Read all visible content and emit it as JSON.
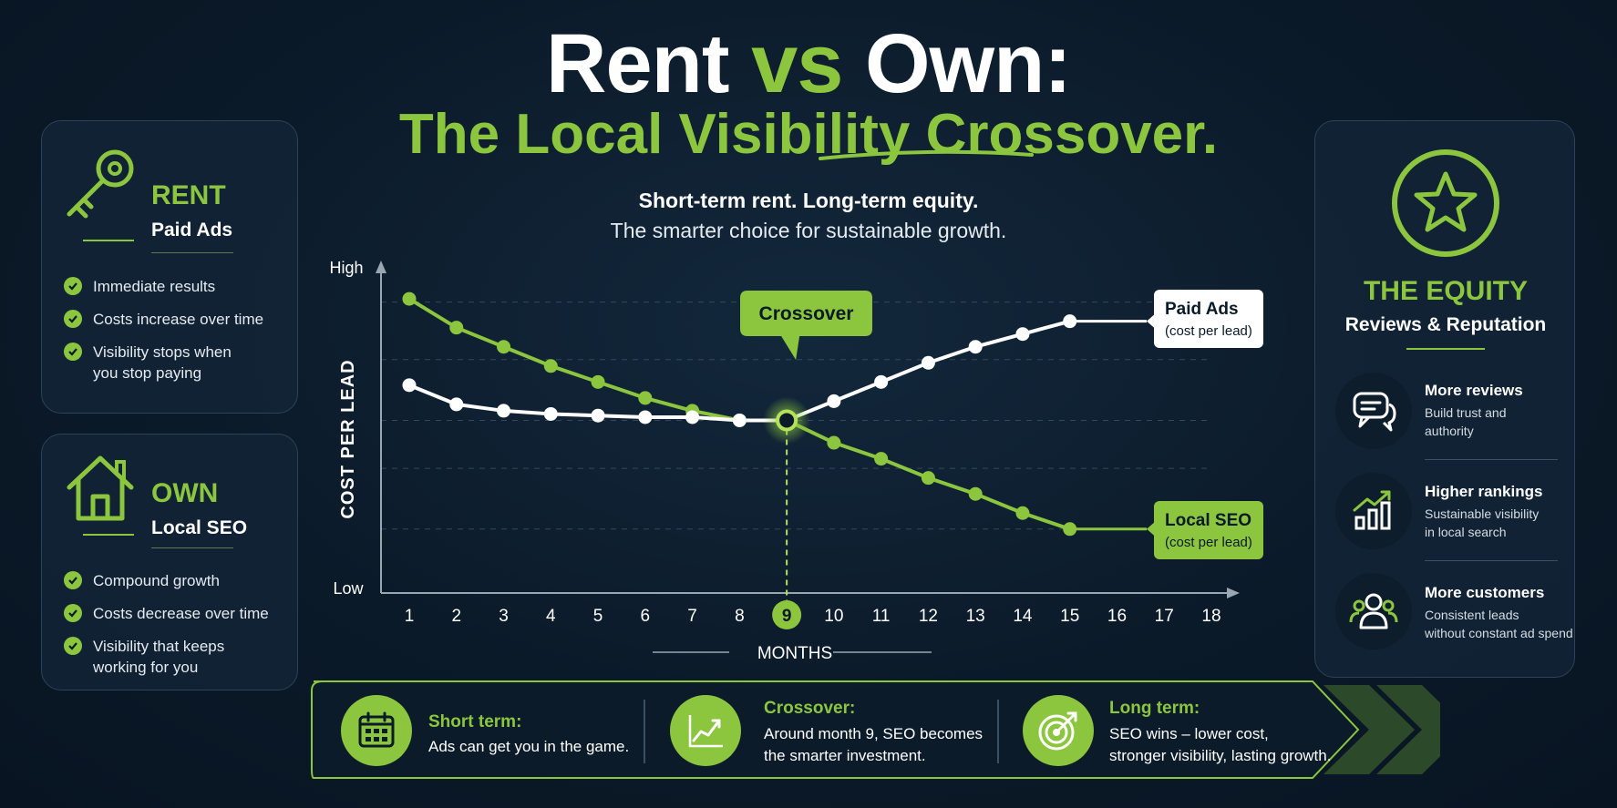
{
  "title": {
    "part1": "Rent",
    "part2": "vs",
    "part3": "Own:",
    "line2": "The Local Visibility Crossover."
  },
  "subtitle": {
    "line1": "Short-term rent. Long-term equity.",
    "line2": "The smarter choice for sustainable growth."
  },
  "rent_panel": {
    "heading": "RENT",
    "sub": "Paid Ads",
    "icon": "key-icon",
    "items": [
      "Immediate results",
      "Costs increase over time",
      "Visibility stops when",
      "you stop paying"
    ]
  },
  "own_panel": {
    "heading": "OWN",
    "sub": "Local SEO",
    "icon": "house-icon",
    "items": [
      "Compound growth",
      "Costs decrease over time",
      "Visibility that keeps",
      "working for you"
    ]
  },
  "equity_panel": {
    "heading": "THE EQUITY",
    "sub": "Reviews & Reputation",
    "icon": "star-icon",
    "items": [
      {
        "title": "More reviews",
        "desc1": "Build trust and",
        "desc2": "authority",
        "icon": "chat-icon"
      },
      {
        "title": "Higher rankings",
        "desc1": "Sustainable visibility",
        "desc2": "in local search",
        "icon": "bar-chart-icon"
      },
      {
        "title": "More customers",
        "desc1": "Consistent leads",
        "desc2": "without constant ad spend",
        "icon": "users-icon"
      }
    ]
  },
  "chart_data": {
    "type": "line",
    "xlabel": "MONTHS",
    "ylabel": "COST PER LEAD",
    "y_tick_high": "High",
    "y_tick_low": "Low",
    "x": [
      1,
      2,
      3,
      4,
      5,
      6,
      7,
      8,
      9,
      10,
      11,
      12,
      13,
      14,
      15,
      16,
      17,
      18
    ],
    "xlim": [
      1,
      18
    ],
    "ylim": [
      0,
      100
    ],
    "grid": true,
    "crossover_month": 9,
    "crossover_label": "Crossover",
    "series": [
      {
        "name": "Paid Ads",
        "sublabel": "(cost per lead)",
        "color": "#ffffff",
        "points": [
          [
            1,
            65
          ],
          [
            2,
            59
          ],
          [
            3,
            57
          ],
          [
            4,
            56
          ],
          [
            5,
            55.5
          ],
          [
            6,
            55
          ],
          [
            7,
            55
          ],
          [
            8,
            54
          ],
          [
            9,
            54
          ],
          [
            10,
            60
          ],
          [
            11,
            66
          ],
          [
            12,
            72
          ],
          [
            13,
            77
          ],
          [
            14,
            81
          ],
          [
            15,
            85
          ]
        ]
      },
      {
        "name": "Local SEO",
        "sublabel": "(cost per lead)",
        "color": "#8cc63f",
        "points": [
          [
            1,
            92
          ],
          [
            2,
            83
          ],
          [
            3,
            77
          ],
          [
            4,
            71
          ],
          [
            5,
            66
          ],
          [
            6,
            61
          ],
          [
            7,
            57
          ],
          [
            8,
            54
          ],
          [
            9,
            54
          ],
          [
            10,
            47
          ],
          [
            11,
            42
          ],
          [
            12,
            36
          ],
          [
            13,
            31
          ],
          [
            14,
            25
          ],
          [
            15,
            20
          ]
        ]
      }
    ]
  },
  "bottom": [
    {
      "title": "Short term:",
      "desc1": "Ads can get you in the game.",
      "desc2": "",
      "icon": "calendar-icon"
    },
    {
      "title": "Crossover:",
      "desc1": "Around month 9, SEO becomes",
      "desc2": "the smarter investment.",
      "icon": "trend-icon"
    },
    {
      "title": "Long term:",
      "desc1": "SEO wins – lower cost,",
      "desc2": "stronger visibility, lasting growth.",
      "icon": "target-icon"
    }
  ]
}
